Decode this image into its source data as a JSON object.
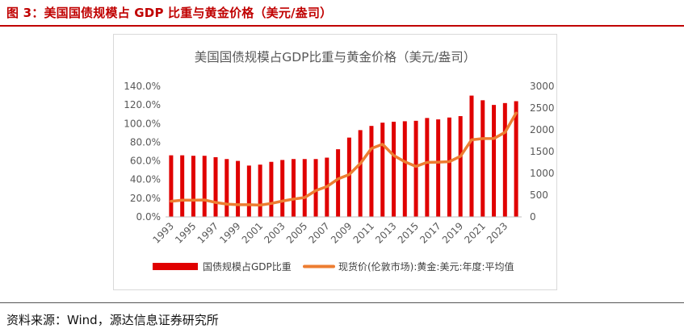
{
  "figure": {
    "caption": "图 3：美国国债规模占 GDP 比重与黄金价格（美元/盎司）",
    "source": "资料来源：Wind，源达信息证券研究所",
    "accent_color": "#c00000"
  },
  "chart_data": {
    "type": "bar+line",
    "title": "美国国债规模占GDP比重与黄金价格（美元/盎司）",
    "x": [
      1993,
      1994,
      1995,
      1996,
      1997,
      1998,
      1999,
      2000,
      2001,
      2002,
      2003,
      2004,
      2005,
      2006,
      2007,
      2008,
      2009,
      2010,
      2011,
      2012,
      2013,
      2014,
      2015,
      2016,
      2017,
      2018,
      2019,
      2020,
      2021,
      2022,
      2023,
      2024
    ],
    "x_tick_labels": [
      "1993",
      "1995",
      "1997",
      "1999",
      "2001",
      "2003",
      "2005",
      "2007",
      "2009",
      "2011",
      "2013",
      "2015",
      "2017",
      "2019",
      "2021",
      "2023"
    ],
    "left_axis": {
      "ylim": [
        0,
        140
      ],
      "ticks": [
        "0.0%",
        "20.0%",
        "40.0%",
        "60.0%",
        "80.0%",
        "100.0%",
        "120.0%",
        "140.0%"
      ]
    },
    "right_axis": {
      "ylim": [
        0,
        3000
      ],
      "ticks": [
        "0",
        "500",
        "1000",
        "1500",
        "2000",
        "2500",
        "3000"
      ]
    },
    "series": [
      {
        "name": "国债规模占GDP比重",
        "type": "bar",
        "axis": "left",
        "color": "#e00000",
        "values": [
          66,
          66,
          65.5,
          65.5,
          64,
          62,
          60,
          55,
          56,
          59,
          61,
          62,
          62,
          62,
          63.5,
          72.5,
          85,
          93,
          97.5,
          101,
          102,
          102.5,
          103,
          106,
          104.5,
          106.5,
          108,
          130,
          125,
          120,
          122,
          124
        ]
      },
      {
        "name": "现货价(伦敦市场):黄金:美元:年度:平均值",
        "type": "line",
        "axis": "right",
        "color": "#ed7d31",
        "values": [
          360,
          384,
          384,
          388,
          331,
          294,
          279,
          279,
          271,
          310,
          363,
          409,
          445,
          604,
          696,
          872,
          972,
          1225,
          1572,
          1669,
          1411,
          1266,
          1160,
          1251,
          1257,
          1268,
          1393,
          1770,
          1799,
          1800,
          1941,
          2386
        ]
      }
    ],
    "legend": {
      "position": "bottom"
    },
    "grid": false
  }
}
